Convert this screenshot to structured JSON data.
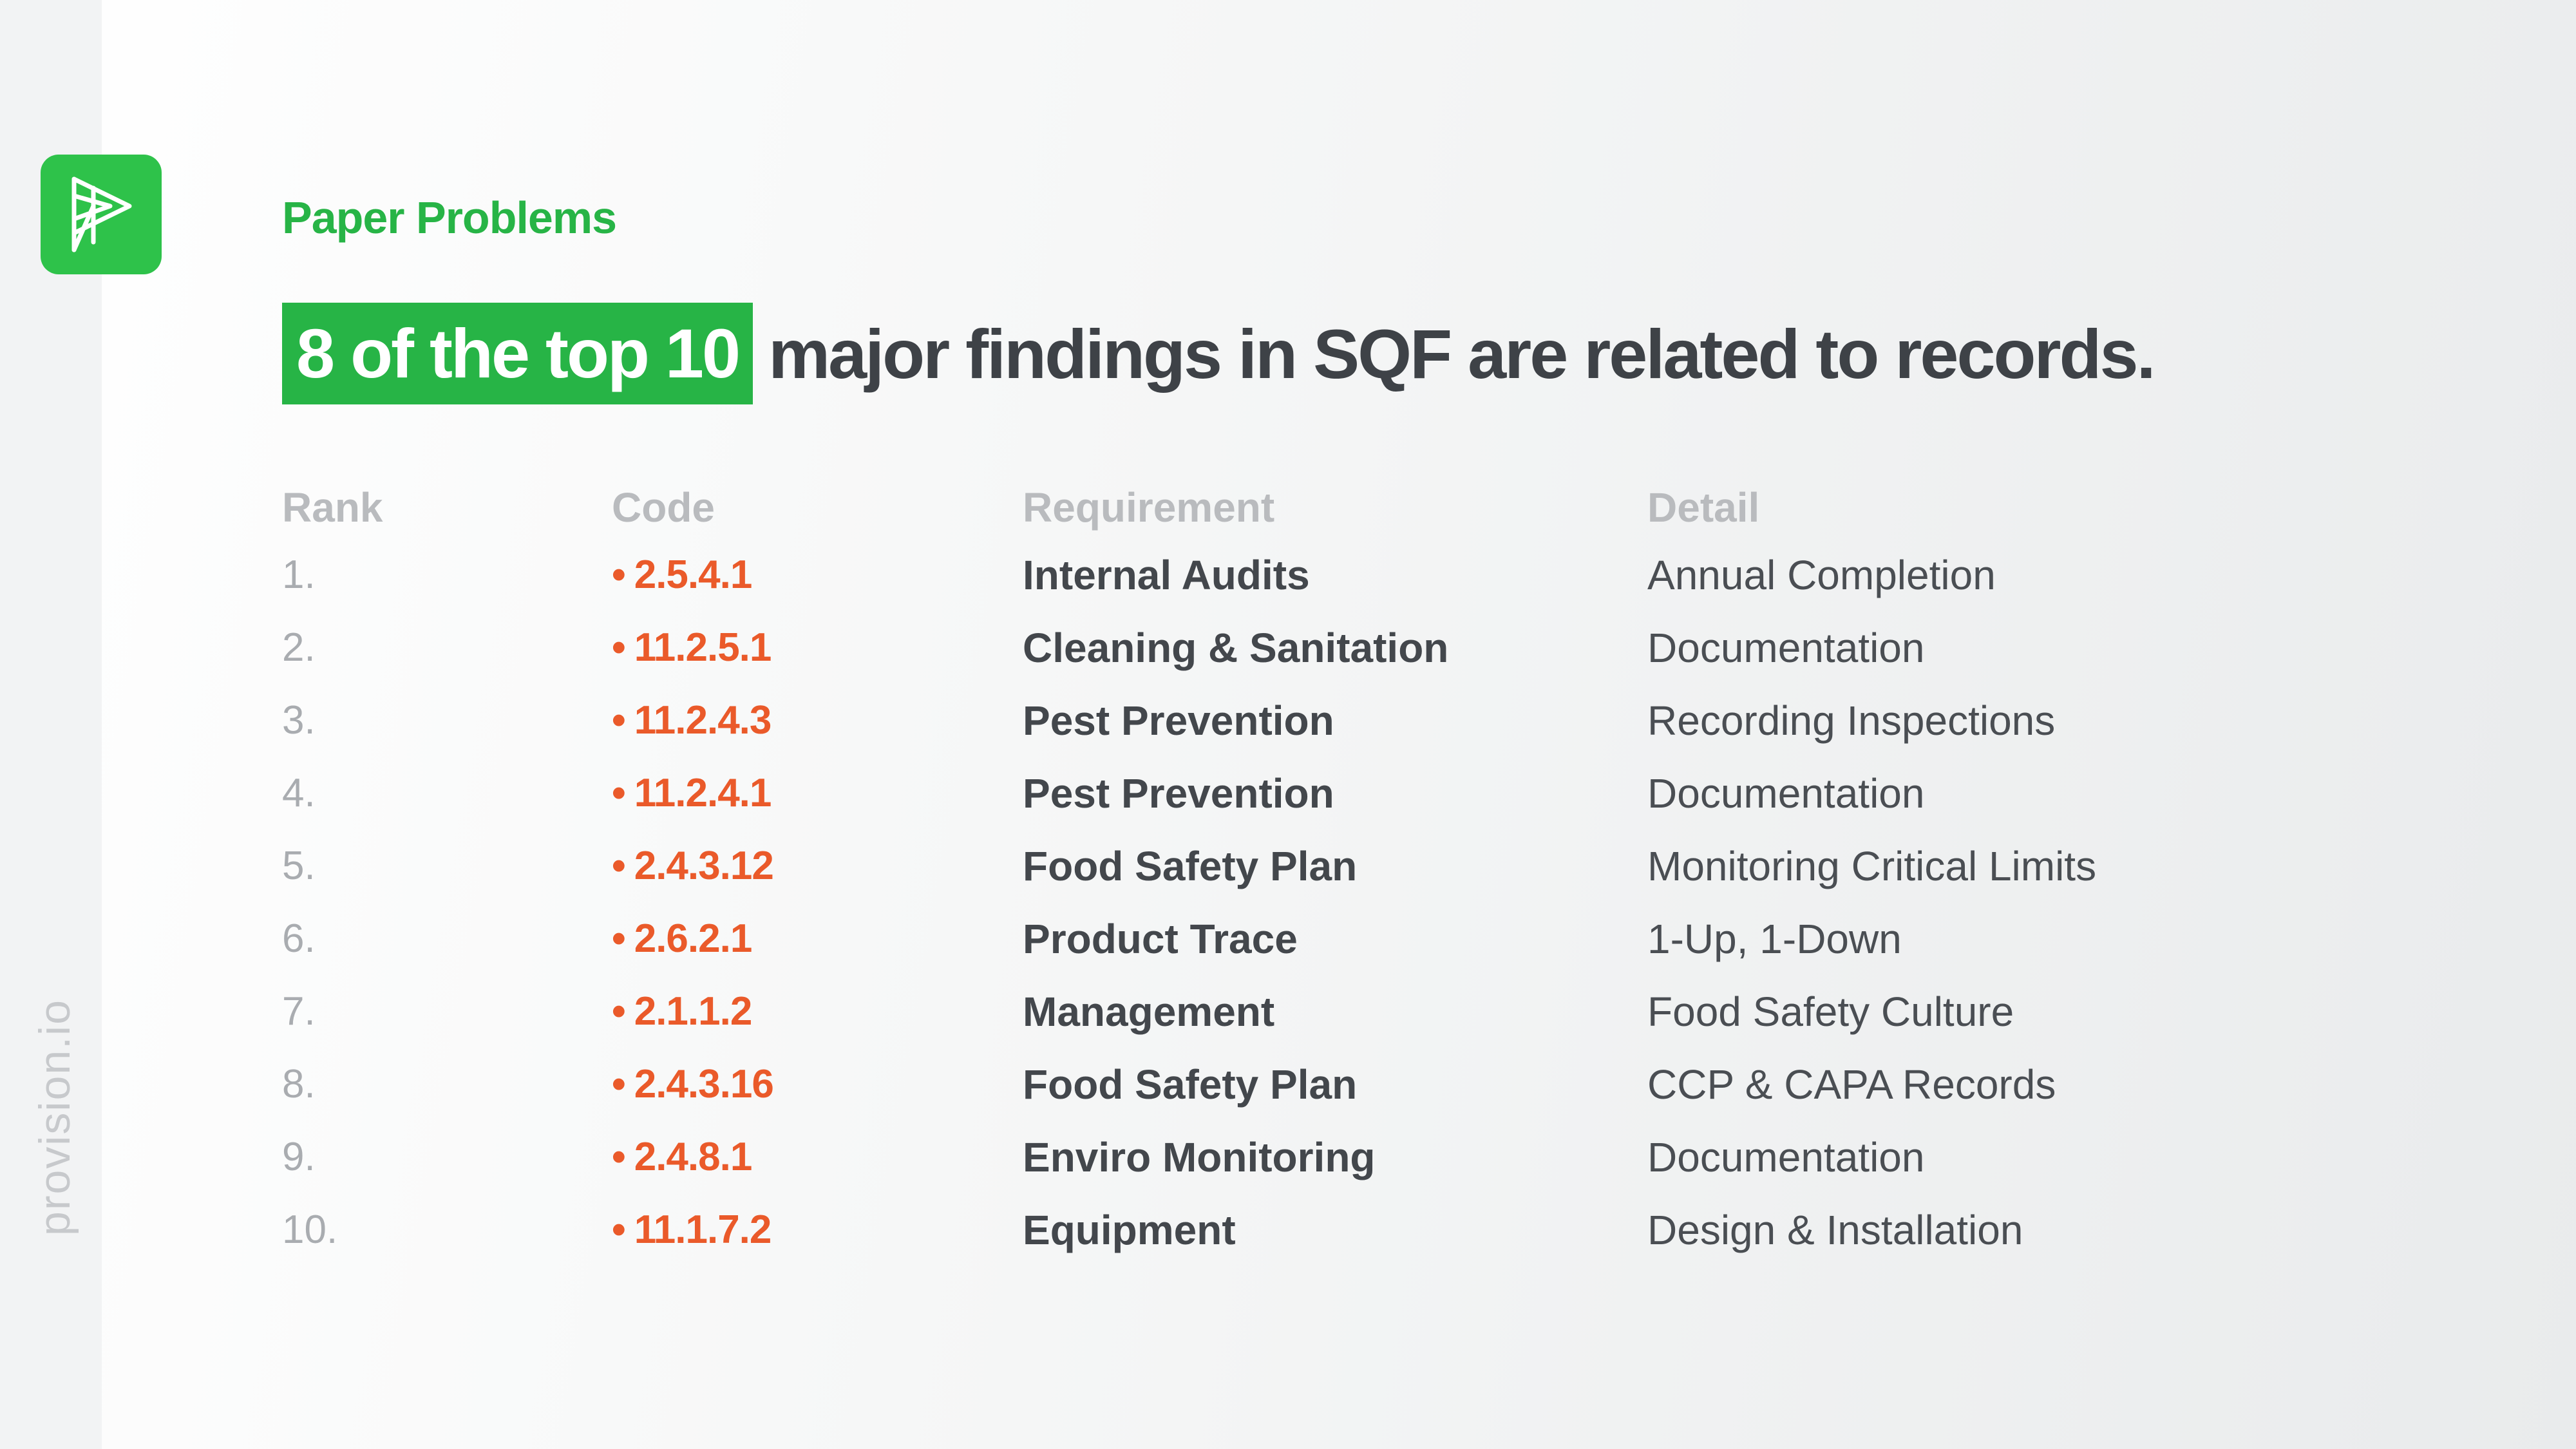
{
  "brand": {
    "vertical_text": "provision.io",
    "logo_icon": "provision-logo-icon",
    "accent_color": "#27b446"
  },
  "eyebrow": "Paper Problems",
  "headline": {
    "highlight": "8 of the top 10",
    "rest": "major findings in SQF are related to records."
  },
  "table": {
    "headers": {
      "rank": "Rank",
      "code": "Code",
      "requirement": "Requirement",
      "detail": "Detail"
    },
    "bullet": "•",
    "code_color": "#ea5a2a",
    "rows": [
      {
        "rank": "1.",
        "code": "2.5.4.1",
        "requirement": "Internal Audits",
        "detail": "Annual Completion"
      },
      {
        "rank": "2.",
        "code": "11.2.5.1",
        "requirement": "Cleaning & Sanitation",
        "detail": "Documentation"
      },
      {
        "rank": "3.",
        "code": "11.2.4.3",
        "requirement": "Pest Prevention",
        "detail": "Recording Inspections"
      },
      {
        "rank": "4.",
        "code": "11.2.4.1",
        "requirement": "Pest Prevention",
        "detail": "Documentation"
      },
      {
        "rank": "5.",
        "code": "2.4.3.12",
        "requirement": "Food Safety Plan",
        "detail": "Monitoring Critical Limits"
      },
      {
        "rank": "6.",
        "code": "2.6.2.1",
        "requirement": "Product Trace",
        "detail": "1-Up, 1-Down"
      },
      {
        "rank": "7.",
        "code": "2.1.1.2",
        "requirement": "Management",
        "detail": "Food Safety Culture"
      },
      {
        "rank": "8.",
        "code": "2.4.3.16",
        "requirement": "Food Safety Plan",
        "detail": "CCP & CAPA Records"
      },
      {
        "rank": "9.",
        "code": "2.4.8.1",
        "requirement": "Enviro Monitoring",
        "detail": "Documentation"
      },
      {
        "rank": "10.",
        "code": "11.1.7.2",
        "requirement": "Equipment",
        "detail": "Design & Installation"
      }
    ]
  }
}
